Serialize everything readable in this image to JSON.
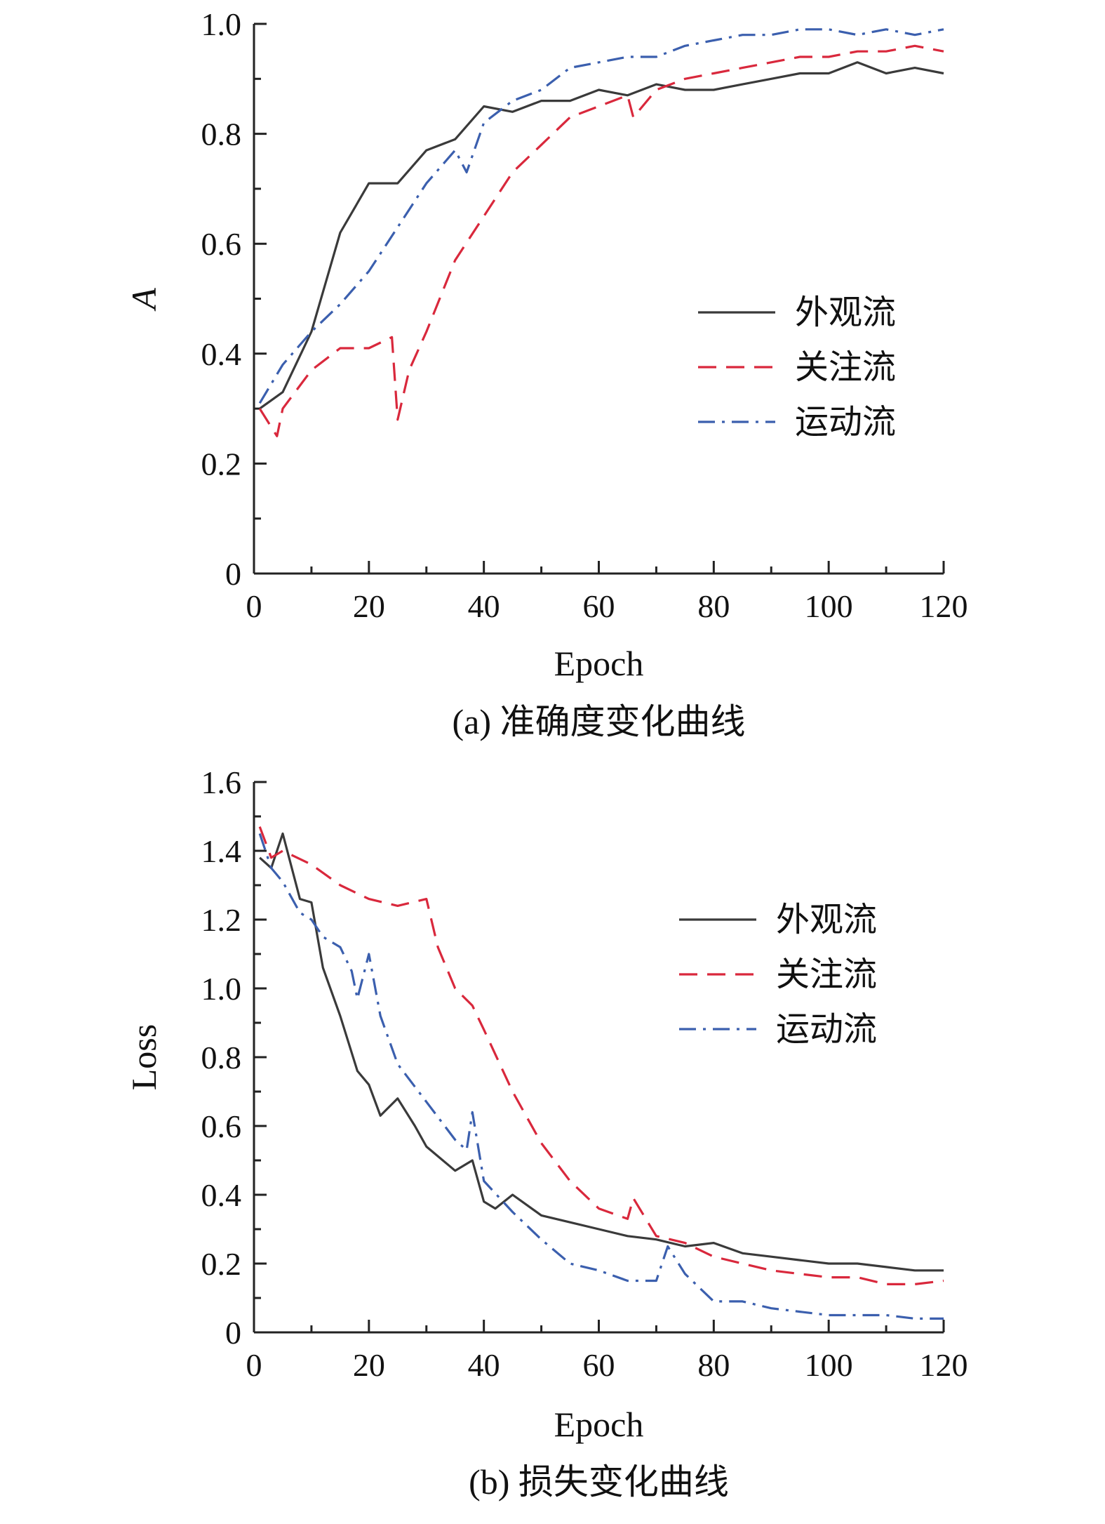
{
  "chart_data": [
    {
      "type": "line",
      "caption": "(a) 准确度变化曲线",
      "xlabel": "Epoch",
      "ylabel": "A",
      "ylabel_italic": true,
      "xlim": [
        0,
        120
      ],
      "ylim": [
        0,
        1.0
      ],
      "xticks": [
        0,
        20,
        40,
        60,
        80,
        100,
        120
      ],
      "yticks": [
        0,
        0.2,
        0.4,
        0.6,
        0.8,
        1.0
      ],
      "yticklabels": [
        "0",
        "0.2",
        "0.4",
        "0.6",
        "0.8",
        "1.0"
      ],
      "grid": false,
      "legend_position": "right-middle",
      "series": [
        {
          "name": "外观流",
          "color": "#3a3a3a",
          "dash": "solid",
          "x": [
            1,
            5,
            10,
            15,
            20,
            25,
            30,
            35,
            40,
            45,
            50,
            55,
            60,
            65,
            70,
            75,
            80,
            85,
            90,
            95,
            100,
            105,
            110,
            115,
            120
          ],
          "y": [
            0.3,
            0.33,
            0.44,
            0.62,
            0.71,
            0.71,
            0.77,
            0.79,
            0.85,
            0.84,
            0.86,
            0.86,
            0.88,
            0.87,
            0.89,
            0.88,
            0.88,
            0.89,
            0.9,
            0.91,
            0.91,
            0.93,
            0.91,
            0.92,
            0.91
          ]
        },
        {
          "name": "关注流",
          "color": "#d9283c",
          "dash": "dashed",
          "x": [
            1,
            4,
            5,
            10,
            15,
            20,
            24,
            25,
            27,
            30,
            35,
            40,
            45,
            50,
            55,
            60,
            65,
            66,
            70,
            75,
            80,
            85,
            90,
            95,
            100,
            105,
            110,
            115,
            120
          ],
          "y": [
            0.3,
            0.25,
            0.3,
            0.37,
            0.41,
            0.41,
            0.43,
            0.28,
            0.37,
            0.44,
            0.57,
            0.65,
            0.73,
            0.78,
            0.83,
            0.85,
            0.87,
            0.83,
            0.88,
            0.9,
            0.91,
            0.92,
            0.93,
            0.94,
            0.94,
            0.95,
            0.95,
            0.96,
            0.95
          ]
        },
        {
          "name": "运动流",
          "color": "#3b5fae",
          "dash": "dashdot",
          "x": [
            1,
            5,
            10,
            15,
            20,
            25,
            30,
            35,
            37,
            40,
            45,
            50,
            55,
            60,
            65,
            70,
            75,
            80,
            85,
            90,
            95,
            100,
            105,
            110,
            115,
            120
          ],
          "y": [
            0.31,
            0.38,
            0.44,
            0.49,
            0.55,
            0.63,
            0.71,
            0.77,
            0.73,
            0.82,
            0.86,
            0.88,
            0.92,
            0.93,
            0.94,
            0.94,
            0.96,
            0.97,
            0.98,
            0.98,
            0.99,
            0.99,
            0.98,
            0.99,
            0.98,
            0.99
          ]
        }
      ]
    },
    {
      "type": "line",
      "caption": "(b) 损失变化曲线",
      "xlabel": "Epoch",
      "ylabel": "Loss",
      "ylabel_italic": false,
      "xlim": [
        0,
        120
      ],
      "ylim": [
        0,
        1.6
      ],
      "xticks": [
        0,
        20,
        40,
        60,
        80,
        100,
        120
      ],
      "yticks": [
        0,
        0.2,
        0.4,
        0.6,
        0.8,
        1.0,
        1.2,
        1.4,
        1.6
      ],
      "yticklabels": [
        "0",
        "0.2",
        "0.4",
        "0.6",
        "0.8",
        "1.0",
        "1.2",
        "1.4",
        "1.6"
      ],
      "grid": false,
      "legend_position": "top-right",
      "series": [
        {
          "name": "外观流",
          "color": "#3a3a3a",
          "dash": "solid",
          "x": [
            1,
            3,
            5,
            8,
            10,
            12,
            15,
            18,
            20,
            22,
            25,
            28,
            30,
            35,
            38,
            40,
            42,
            45,
            50,
            55,
            60,
            65,
            70,
            75,
            80,
            85,
            90,
            95,
            100,
            105,
            110,
            115,
            120
          ],
          "y": [
            1.38,
            1.35,
            1.45,
            1.26,
            1.25,
            1.06,
            0.92,
            0.76,
            0.72,
            0.63,
            0.68,
            0.6,
            0.54,
            0.47,
            0.5,
            0.38,
            0.36,
            0.4,
            0.34,
            0.32,
            0.3,
            0.28,
            0.27,
            0.25,
            0.26,
            0.23,
            0.22,
            0.21,
            0.2,
            0.2,
            0.19,
            0.18,
            0.18
          ]
        },
        {
          "name": "关注流",
          "color": "#d9283c",
          "dash": "dashed",
          "x": [
            1,
            3,
            5,
            10,
            15,
            20,
            25,
            30,
            32,
            35,
            38,
            40,
            45,
            50,
            55,
            60,
            65,
            66,
            70,
            75,
            80,
            85,
            90,
            95,
            100,
            105,
            110,
            115,
            120
          ],
          "y": [
            1.47,
            1.38,
            1.4,
            1.36,
            1.3,
            1.26,
            1.24,
            1.26,
            1.12,
            1.0,
            0.95,
            0.88,
            0.7,
            0.55,
            0.44,
            0.36,
            0.33,
            0.39,
            0.28,
            0.26,
            0.22,
            0.2,
            0.18,
            0.17,
            0.16,
            0.16,
            0.14,
            0.14,
            0.15
          ]
        },
        {
          "name": "运动流",
          "color": "#3b5fae",
          "dash": "dashdot",
          "x": [
            1,
            3,
            5,
            8,
            10,
            12,
            15,
            17,
            18,
            20,
            22,
            25,
            30,
            35,
            37,
            38,
            40,
            45,
            50,
            55,
            60,
            65,
            70,
            72,
            75,
            80,
            85,
            90,
            95,
            100,
            105,
            110,
            115,
            120
          ],
          "y": [
            1.45,
            1.35,
            1.31,
            1.22,
            1.2,
            1.15,
            1.12,
            1.05,
            0.97,
            1.1,
            0.92,
            0.78,
            0.67,
            0.56,
            0.53,
            0.64,
            0.44,
            0.35,
            0.27,
            0.2,
            0.18,
            0.15,
            0.15,
            0.25,
            0.17,
            0.09,
            0.09,
            0.07,
            0.06,
            0.05,
            0.05,
            0.05,
            0.04,
            0.04
          ]
        }
      ]
    }
  ]
}
